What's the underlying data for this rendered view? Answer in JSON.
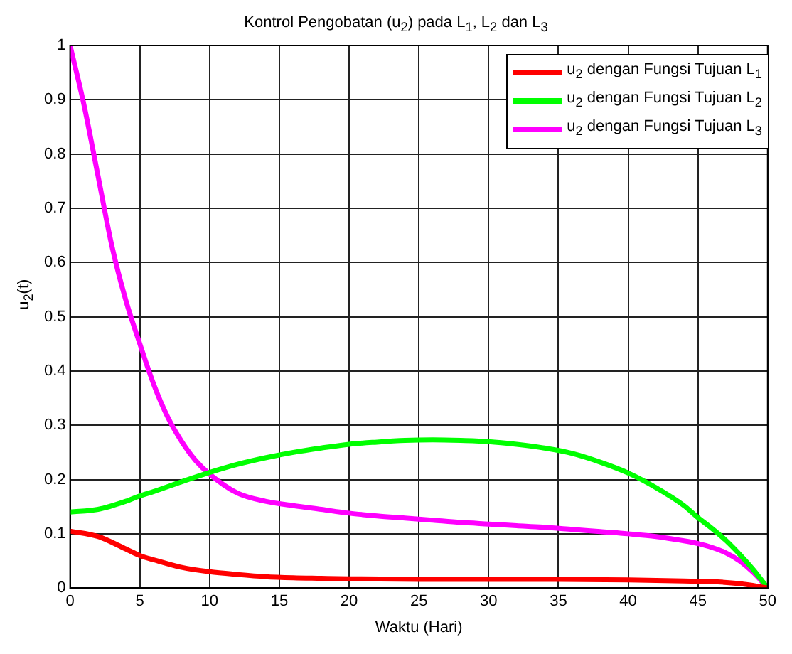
{
  "chart_data": {
    "type": "line",
    "title": "Kontrol Pengobatan (u$_{2}$) pada L$_{1}$, L$_{2}$ dan L$_{3}$",
    "xlabel": "Waktu (Hari)",
    "ylabel": "u$_{2}$(t)",
    "xlim": [
      0,
      50
    ],
    "xticks": [
      0,
      5,
      10,
      15,
      20,
      25,
      30,
      35,
      40,
      45,
      50
    ],
    "ylim": [
      0,
      1
    ],
    "yticks": [
      0,
      0.1,
      0.2,
      0.3,
      0.4,
      0.5,
      0.6,
      0.7,
      0.8,
      0.9,
      1
    ],
    "grid": true,
    "legend": "top right",
    "marker": "none",
    "line_style": "solid",
    "series": [
      {
        "name": "u$_{2}$ dengan Fungsi Tujuan L$_{1}$",
        "color": "#ff0000",
        "x": [
          0,
          2,
          4,
          5,
          6,
          8,
          10,
          12,
          14,
          16,
          18,
          20,
          25,
          30,
          35,
          40,
          44,
          46,
          48,
          50
        ],
        "values": [
          0.105,
          0.095,
          0.072,
          0.06,
          0.052,
          0.038,
          0.03,
          0.025,
          0.021,
          0.019,
          0.018,
          0.017,
          0.016,
          0.016,
          0.016,
          0.015,
          0.013,
          0.012,
          0.008,
          0
        ]
      },
      {
        "name": "u$_{2}$ dengan Fungsi Tujuan L$_{2}$",
        "color": "#00ff00",
        "x": [
          0,
          2,
          4,
          5,
          6,
          8,
          10,
          12,
          14,
          16,
          18,
          20,
          22,
          24,
          26,
          28,
          30,
          32,
          34,
          36,
          38,
          40,
          42,
          44,
          45,
          46,
          47,
          48,
          49,
          50
        ],
        "values": [
          0.14,
          0.145,
          0.16,
          0.17,
          0.178,
          0.196,
          0.213,
          0.228,
          0.24,
          0.25,
          0.258,
          0.265,
          0.269,
          0.272,
          0.273,
          0.272,
          0.27,
          0.265,
          0.258,
          0.248,
          0.232,
          0.212,
          0.185,
          0.152,
          0.13,
          0.11,
          0.088,
          0.062,
          0.033,
          0
        ]
      },
      {
        "name": "u$_{2}$ dengan Fungsi Tujuan L$_{3}$",
        "color": "#ff00ff",
        "x": [
          0,
          1,
          2,
          3,
          4,
          5,
          6,
          7,
          8,
          9,
          10,
          12,
          14,
          16,
          18,
          20,
          22,
          24,
          26,
          28,
          30,
          32,
          34,
          36,
          38,
          40,
          42,
          44,
          45,
          46,
          47,
          48,
          49,
          50
        ],
        "values": [
          1.0,
          0.89,
          0.76,
          0.63,
          0.53,
          0.45,
          0.375,
          0.315,
          0.27,
          0.235,
          0.21,
          0.175,
          0.16,
          0.152,
          0.145,
          0.138,
          0.133,
          0.129,
          0.125,
          0.121,
          0.118,
          0.115,
          0.112,
          0.108,
          0.104,
          0.1,
          0.095,
          0.087,
          0.082,
          0.075,
          0.065,
          0.05,
          0.028,
          0
        ]
      }
    ]
  }
}
